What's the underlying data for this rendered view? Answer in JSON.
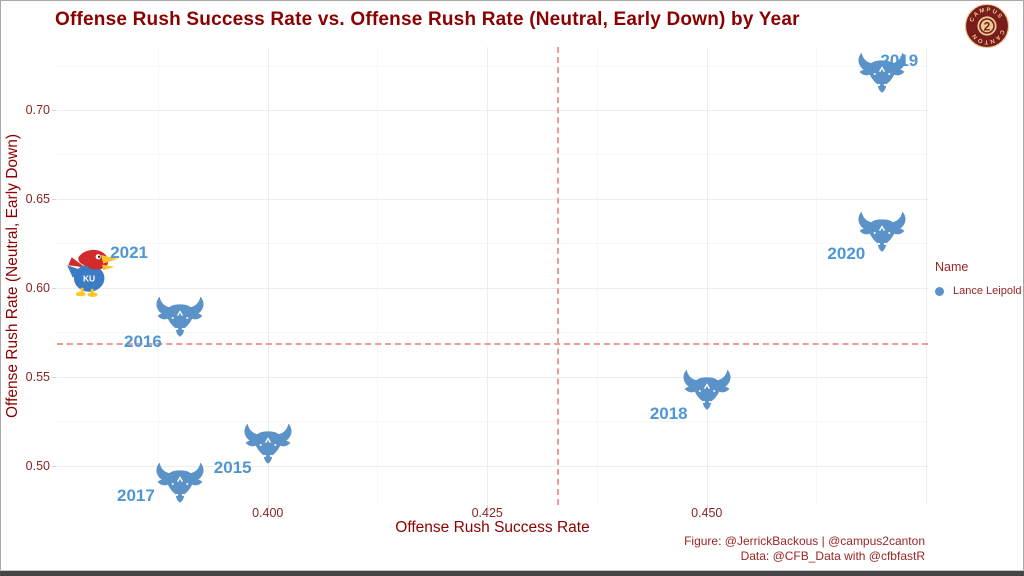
{
  "badge": {
    "name": "campus2canton",
    "center_text": "2",
    "arc_top": "CAMPUS",
    "arc_bottom": "CANTON"
  },
  "footer": {
    "line1": "Figure: @JerrickBackous | @campus2canton",
    "line2": "Data: @CFB_Data with @cfbfastR"
  },
  "chart_data": {
    "type": "scatter",
    "title": "Offense Rush Success Rate vs. Offense Rush Rate (Neutral, Early Down) by Year",
    "xlabel": "Offense Rush Success Rate",
    "ylabel": "Offense Rush Rate (Neutral, Early Down)",
    "grid": "major+minor",
    "x_axis": {
      "lim": [
        0.376,
        0.4752
      ],
      "ticks": [
        {
          "v": 0.4,
          "label": "0.400"
        },
        {
          "v": 0.425,
          "label": "0.425"
        },
        {
          "v": 0.45,
          "label": "0.450"
        },
        {
          "v": 0.475,
          "label": ""
        }
      ],
      "minor": [
        0.3875,
        0.4125,
        0.4375,
        0.4625
      ]
    },
    "y_axis": {
      "lim": [
        0.478,
        0.7354
      ],
      "ticks": [
        {
          "v": 0.5,
          "label": "0.50"
        },
        {
          "v": 0.55,
          "label": "0.55"
        },
        {
          "v": 0.6,
          "label": "0.60"
        },
        {
          "v": 0.65,
          "label": "0.65"
        },
        {
          "v": 0.7,
          "label": "0.70"
        }
      ],
      "minor": [
        0.525,
        0.575,
        0.625,
        0.675,
        0.725
      ]
    },
    "reference_lines": {
      "vline_x": 0.433,
      "hline_y": 0.569,
      "style": "dashed"
    },
    "legend": {
      "title": "Name",
      "position": "right",
      "entries": [
        {
          "label": "Lance Leipold",
          "marker_color": "#5b92c8"
        }
      ]
    },
    "kansas_logo_text": "KU",
    "series": [
      {
        "name": "Lance Leipold",
        "points": [
          {
            "year": "2015",
            "x": 0.4,
            "y": 0.512,
            "team_logo": "buffalo-bulls",
            "label_dx": -35,
            "label_dy": 23
          },
          {
            "year": "2016",
            "x": 0.39,
            "y": 0.583,
            "team_logo": "buffalo-bulls",
            "label_dx": -37,
            "label_dy": 24
          },
          {
            "year": "2017",
            "x": 0.39,
            "y": 0.49,
            "team_logo": "buffalo-bulls",
            "label_dx": -44,
            "label_dy": 12
          },
          {
            "year": "2018",
            "x": 0.45,
            "y": 0.542,
            "team_logo": "buffalo-bulls",
            "label_dx": -38,
            "label_dy": 23
          },
          {
            "year": "2019",
            "x": 0.47,
            "y": 0.72,
            "team_logo": "buffalo-bulls",
            "label_dx": 17,
            "label_dy": -13
          },
          {
            "year": "2020",
            "x": 0.47,
            "y": 0.631,
            "team_logo": "buffalo-bulls",
            "label_dx": -36,
            "label_dy": 21
          },
          {
            "year": "2021",
            "x": 0.38,
            "y": 0.609,
            "team_logo": "kansas-jayhawks",
            "label_dx": 37,
            "label_dy": -19
          }
        ]
      }
    ]
  },
  "colors": {
    "title": "#8b0000",
    "axis_text": "#8b2424",
    "year_label": "#4f97d3",
    "bull_blue": "#5b92c8",
    "dashed_line": "#f09a9a",
    "grid_major": "#ededed",
    "grid_minor": "#f7f7f7",
    "legend_text": "#9b2525",
    "footer_text": "#9b2525",
    "badge_maroon": "#7a1c1c",
    "badge_cream": "#eac992",
    "ku_blue": "#3b7cc4",
    "ku_red": "#d22b2b",
    "ku_yellow": "#ffc425"
  }
}
